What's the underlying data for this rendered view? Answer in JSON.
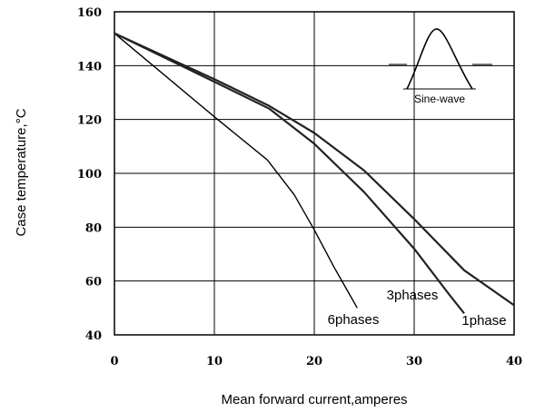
{
  "chart_data": {
    "type": "line",
    "title": "",
    "xlabel": "Mean forward current,amperes",
    "ylabel": "Case temperature,°C",
    "xlim": [
      0,
      40
    ],
    "ylim": [
      40,
      160
    ],
    "x_ticks": [
      "0",
      "10",
      "20",
      "30",
      "40"
    ],
    "y_ticks": [
      "40",
      "60",
      "80",
      "100",
      "120",
      "140",
      "160"
    ],
    "grid": true,
    "series": [
      {
        "name": "6phases",
        "points": [
          [
            0,
            152
          ],
          [
            10,
            121
          ],
          [
            15.3,
            105
          ],
          [
            18,
            92
          ],
          [
            20,
            79
          ],
          [
            22,
            65
          ],
          [
            24.3,
            50
          ]
        ]
      },
      {
        "name": "3phases",
        "points": [
          [
            0,
            152
          ],
          [
            10,
            134
          ],
          [
            15.5,
            124
          ],
          [
            20,
            111
          ],
          [
            25,
            93
          ],
          [
            30,
            72
          ],
          [
            33.5,
            55
          ],
          [
            35,
            48
          ]
        ]
      },
      {
        "name": "1phase",
        "points": [
          [
            0,
            152
          ],
          [
            10,
            135
          ],
          [
            15.5,
            125
          ],
          [
            20,
            115
          ],
          [
            25,
            101
          ],
          [
            30,
            83
          ],
          [
            35,
            64
          ],
          [
            40,
            51
          ]
        ]
      }
    ],
    "inset": {
      "label": "Sine-wave"
    }
  }
}
